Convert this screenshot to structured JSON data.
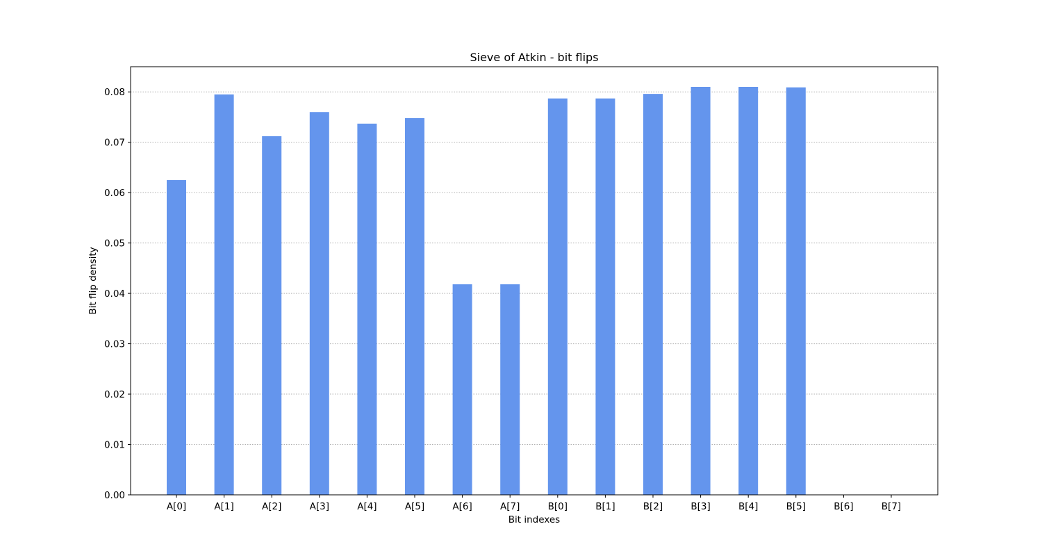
{
  "chart_data": {
    "type": "bar",
    "title": "Sieve of Atkin - bit flips",
    "xlabel": "Bit indexes",
    "ylabel": "Bit flip density",
    "categories": [
      "A[0]",
      "A[1]",
      "A[2]",
      "A[3]",
      "A[4]",
      "A[5]",
      "A[6]",
      "A[7]",
      "B[0]",
      "B[1]",
      "B[2]",
      "B[3]",
      "B[4]",
      "B[5]",
      "B[6]",
      "B[7]"
    ],
    "values": [
      0.0625,
      0.0795,
      0.0712,
      0.076,
      0.0737,
      0.0748,
      0.0418,
      0.0418,
      0.0787,
      0.0787,
      0.0796,
      0.081,
      0.081,
      0.0809,
      0,
      0
    ],
    "ylim": [
      0,
      0.085
    ],
    "yticks": [
      "0.00",
      "0.01",
      "0.02",
      "0.03",
      "0.04",
      "0.05",
      "0.06",
      "0.07",
      "0.08"
    ],
    "grid": "horizontal dotted",
    "bar_color": "#6495ED"
  }
}
